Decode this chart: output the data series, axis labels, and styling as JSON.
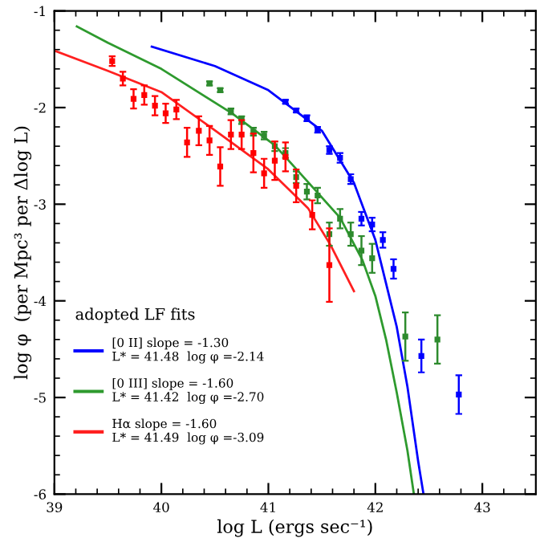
{
  "chart_data": {
    "type": "scatter",
    "xlabel": "log L (ergs sec⁻¹)",
    "ylabel": "log φ  (per Mpc³ per Δlog L)",
    "xlim": [
      39,
      43.5
    ],
    "ylim": [
      -6,
      -1
    ],
    "xticks": [
      39,
      40,
      41,
      42,
      43
    ],
    "yticks": [
      -1,
      -2,
      -3,
      -4,
      -5,
      -6
    ],
    "legend": "bottom left",
    "legend_title": "adopted LF fits",
    "grid": false,
    "series": [
      {
        "type": "line",
        "name": "[0 II] slope = -1.30\nL* = 41.48  log φ =-2.14",
        "color": "#0000ff",
        "x": [
          39.91,
          40.5,
          41.0,
          41.5,
          41.8,
          42.0,
          42.2,
          42.3,
          42.4,
          42.45
        ],
        "values": [
          -1.37,
          -1.57,
          -1.82,
          -2.24,
          -2.78,
          -3.37,
          -4.27,
          -4.89,
          -5.66,
          -6.0
        ]
      },
      {
        "type": "line",
        "name": "[0 III] slope = -1.60\nL* = 41.42  log φ =-2.70",
        "color": "#2e9a2e",
        "x": [
          39.21,
          39.5,
          40.0,
          40.66,
          41.06,
          41.37,
          41.67,
          41.88,
          42.0,
          42.1,
          42.2,
          42.3,
          42.36
        ],
        "values": [
          -1.16,
          -1.33,
          -1.6,
          -2.06,
          -2.39,
          -2.77,
          -3.14,
          -3.58,
          -3.95,
          -4.4,
          -4.95,
          -5.55,
          -6.0
        ]
      },
      {
        "type": "line",
        "name": "Hα slope = -1.60\nL* = 41.49  log φ =-3.09",
        "color": "#ff2020",
        "x": [
          39.0,
          39.5,
          40.0,
          40.48,
          40.99,
          41.37,
          41.58,
          41.8
        ],
        "values": [
          -1.41,
          -1.62,
          -1.84,
          -2.22,
          -2.63,
          -3.04,
          -3.42,
          -3.9
        ]
      },
      {
        "marker": "square",
        "color": "#0000ff",
        "x": [
          41.16,
          41.26,
          41.36,
          41.46,
          41.57,
          41.67,
          41.77,
          41.87,
          41.97,
          42.07,
          42.17,
          42.43,
          42.78
        ],
        "values": [
          -1.94,
          -2.03,
          -2.11,
          -2.23,
          -2.44,
          -2.52,
          -2.74,
          -3.15,
          -3.21,
          -3.37,
          -3.67,
          -4.57,
          -4.97
        ],
        "errors": [
          0.02,
          0.02,
          0.03,
          0.03,
          0.04,
          0.05,
          0.05,
          0.07,
          0.07,
          0.08,
          0.1,
          0.17,
          0.2
        ]
      },
      {
        "marker": "square",
        "color": "#2e8b2e",
        "x": [
          40.45,
          40.55,
          40.65,
          40.75,
          40.86,
          40.96,
          41.06,
          41.16,
          41.26,
          41.36,
          41.46,
          41.57,
          41.67,
          41.77,
          41.87,
          41.97,
          42.28,
          42.58
        ],
        "values": [
          -1.75,
          -1.82,
          -2.04,
          -2.13,
          -2.25,
          -2.29,
          -2.4,
          -2.47,
          -2.72,
          -2.87,
          -2.91,
          -3.31,
          -3.15,
          -3.31,
          -3.48,
          -3.56,
          -4.37,
          -4.4
        ],
        "errors": [
          0.02,
          0.02,
          0.03,
          0.04,
          0.04,
          0.04,
          0.05,
          0.05,
          0.06,
          0.08,
          0.08,
          0.12,
          0.1,
          0.12,
          0.15,
          0.15,
          0.25,
          0.25
        ]
      },
      {
        "marker": "square",
        "color": "#ff0000",
        "x": [
          39.54,
          39.64,
          39.74,
          39.84,
          39.94,
          40.04,
          40.14,
          40.24,
          40.35,
          40.45,
          40.55,
          40.65,
          40.75,
          40.86,
          40.96,
          41.06,
          41.16,
          41.26,
          41.41,
          41.57
        ],
        "values": [
          -1.52,
          -1.7,
          -1.91,
          -1.87,
          -1.98,
          -2.06,
          -2.02,
          -2.36,
          -2.24,
          -2.34,
          -2.61,
          -2.28,
          -2.28,
          -2.47,
          -2.68,
          -2.55,
          -2.51,
          -2.81,
          -3.11,
          -3.63
        ],
        "errors": [
          0.05,
          0.07,
          0.1,
          0.1,
          0.1,
          0.1,
          0.1,
          0.15,
          0.15,
          0.15,
          0.2,
          0.15,
          0.15,
          0.2,
          0.15,
          0.2,
          0.15,
          0.17,
          0.15,
          0.38
        ]
      }
    ]
  }
}
